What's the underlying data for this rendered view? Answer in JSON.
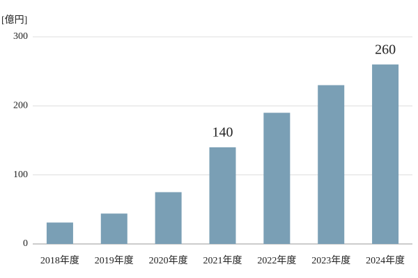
{
  "chart_data": {
    "type": "bar",
    "unit_label": "[億円]",
    "categories": [
      "2018年度",
      "2019年度",
      "2020年度",
      "2021年度",
      "2022年度",
      "2023年度",
      "2024年度"
    ],
    "values": [
      31,
      44,
      75,
      140,
      190,
      230,
      260
    ],
    "value_labels": [
      null,
      null,
      null,
      "140",
      null,
      null,
      "260"
    ],
    "color": "#7a9fb5",
    "ylim": [
      0,
      300
    ],
    "yticks": [
      0,
      100,
      200,
      300
    ],
    "grid": true
  }
}
